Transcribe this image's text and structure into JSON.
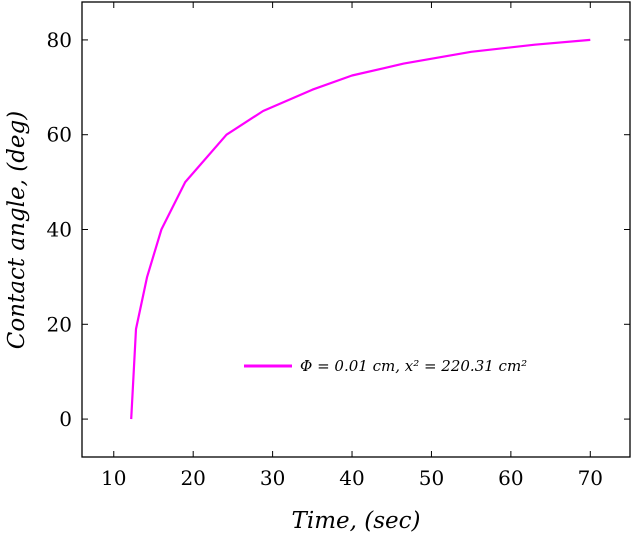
{
  "chart_data": {
    "type": "line",
    "title": "",
    "xlabel": "Time, (sec)",
    "ylabel": "Contact angle, (deg)",
    "xlim": [
      6,
      75
    ],
    "ylim": [
      -8,
      88
    ],
    "xticks": [
      "10",
      "20",
      "30",
      "40",
      "50",
      "60",
      "70"
    ],
    "yticks": [
      "0",
      "20",
      "40",
      "60",
      "80"
    ],
    "grid": false,
    "legend_position": "lower-right",
    "series": [
      {
        "name": "Φ = 0.01 cm, x² = 220.31 cm²",
        "color": "#ff00ff",
        "x": [
          12.2,
          12.8,
          14.2,
          16.0,
          19.0,
          24.2,
          28.8,
          35.0,
          40.0,
          46.5,
          55.0,
          63.0,
          70.0
        ],
        "y": [
          0,
          19,
          30,
          40,
          50,
          60,
          65,
          69.5,
          72.5,
          75,
          77.5,
          79,
          80
        ]
      }
    ]
  }
}
